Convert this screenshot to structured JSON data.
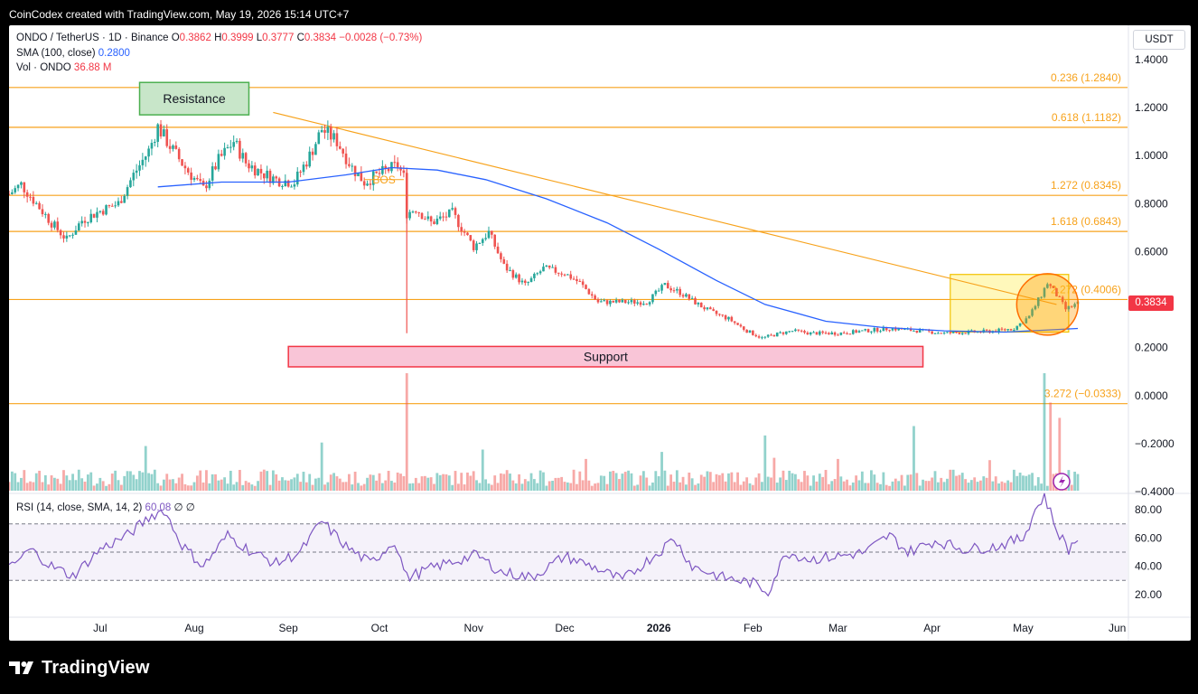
{
  "header": {
    "caption": "CoinCodex created with TradingView.com, May 19, 2026 15:14 UTC+7"
  },
  "legend": {
    "symbol": "ONDO / TetherUS · 1D · Binance",
    "o_label": "O",
    "o_value": "0.3862",
    "h_label": "H",
    "h_value": "0.3999",
    "l_label": "L",
    "l_value": "0.3777",
    "c_label": "C",
    "c_value": "0.3834",
    "change": "−0.0028 (−0.73%)",
    "sma_label": "SMA (100, close)",
    "sma_value": "0.2800",
    "vol_label": "Vol · ONDO",
    "vol_value": "36.88 M"
  },
  "rsi_legend": {
    "label": "RSI (14, close, SMA, 14, 2)",
    "value": "60.08",
    "extra": "∅ ∅"
  },
  "currency": "USDT",
  "last_price_tag": "0.3834",
  "footer": {
    "brand": "TradingView"
  },
  "colors": {
    "up": "#26a69a",
    "down": "#ef5350",
    "sma": "#2962ff",
    "fib": "#f7a21b",
    "rsi": "#7e57c2",
    "resistance_box": "#4caf50",
    "support_box": "#f23645",
    "highlight_box": "#ffeb3b"
  },
  "chart_data": {
    "type": "candlestick",
    "y_axis": {
      "min": -0.4,
      "max": 1.4,
      "ticks": [
        "1.4000",
        "1.2000",
        "1.0000",
        "0.8000",
        "0.6000",
        "0.4000",
        "0.2000",
        "0.0000",
        "−0.2000",
        "−0.4000"
      ]
    },
    "x_ticks": [
      {
        "label": "Jul",
        "date": "2025-07-01"
      },
      {
        "label": "Aug",
        "date": "2025-08-01"
      },
      {
        "label": "Sep",
        "date": "2025-09-01"
      },
      {
        "label": "Oct",
        "date": "2025-10-01"
      },
      {
        "label": "Nov",
        "date": "2025-11-01"
      },
      {
        "label": "Dec",
        "date": "2025-12-01"
      },
      {
        "label": "2026",
        "date": "2026-01-01"
      },
      {
        "label": "Feb",
        "date": "2026-02-01"
      },
      {
        "label": "Mar",
        "date": "2026-03-01"
      },
      {
        "label": "Apr",
        "date": "2026-04-01"
      },
      {
        "label": "May",
        "date": "2026-05-01"
      },
      {
        "label": "Jun",
        "date": "2026-06-01"
      }
    ],
    "x_range": [
      "2025-06-01",
      "2026-06-02"
    ],
    "price_anchors": [
      [
        "2025-06-01",
        0.84
      ],
      [
        "2025-06-05",
        0.88
      ],
      [
        "2025-06-10",
        0.8
      ],
      [
        "2025-06-15",
        0.72
      ],
      [
        "2025-06-20",
        0.65
      ],
      [
        "2025-06-25",
        0.73
      ],
      [
        "2025-07-01",
        0.77
      ],
      [
        "2025-07-07",
        0.8
      ],
      [
        "2025-07-12",
        0.92
      ],
      [
        "2025-07-17",
        1.02
      ],
      [
        "2025-07-20",
        1.12
      ],
      [
        "2025-07-24",
        1.04
      ],
      [
        "2025-07-29",
        0.95
      ],
      [
        "2025-08-04",
        0.86
      ],
      [
        "2025-08-09",
        0.98
      ],
      [
        "2025-08-14",
        1.06
      ],
      [
        "2025-08-18",
        0.97
      ],
      [
        "2025-08-23",
        0.93
      ],
      [
        "2025-08-28",
        0.9
      ],
      [
        "2025-09-03",
        0.89
      ],
      [
        "2025-09-08",
        1.0
      ],
      [
        "2025-09-12",
        1.11
      ],
      [
        "2025-09-17",
        1.06
      ],
      [
        "2025-09-22",
        0.95
      ],
      [
        "2025-09-26",
        0.89
      ],
      [
        "2025-10-02",
        0.93
      ],
      [
        "2025-10-07",
        0.96
      ],
      [
        "2025-10-09",
        0.91
      ],
      [
        "2025-10-10",
        0.76
      ],
      [
        "2025-10-13",
        0.78
      ],
      [
        "2025-10-18",
        0.72
      ],
      [
        "2025-10-25",
        0.76
      ],
      [
        "2025-11-01",
        0.62
      ],
      [
        "2025-11-06",
        0.68
      ],
      [
        "2025-11-11",
        0.54
      ],
      [
        "2025-11-18",
        0.46
      ],
      [
        "2025-11-24",
        0.53
      ],
      [
        "2025-12-01",
        0.51
      ],
      [
        "2025-12-06",
        0.47
      ],
      [
        "2025-12-12",
        0.39
      ],
      [
        "2025-12-20",
        0.39
      ],
      [
        "2025-12-28",
        0.39
      ],
      [
        "2026-01-03",
        0.46
      ],
      [
        "2026-01-08",
        0.43
      ],
      [
        "2026-01-14",
        0.38
      ],
      [
        "2026-01-18",
        0.35
      ],
      [
        "2026-01-24",
        0.32
      ],
      [
        "2026-01-30",
        0.27
      ],
      [
        "2026-02-04",
        0.24
      ],
      [
        "2026-02-10",
        0.26
      ],
      [
        "2026-02-14",
        0.27
      ],
      [
        "2026-02-20",
        0.26
      ],
      [
        "2026-03-01",
        0.26
      ],
      [
        "2026-03-10",
        0.27
      ],
      [
        "2026-03-18",
        0.28
      ],
      [
        "2026-03-28",
        0.27
      ],
      [
        "2026-04-05",
        0.26
      ],
      [
        "2026-04-15",
        0.265
      ],
      [
        "2026-04-22",
        0.27
      ],
      [
        "2026-04-28",
        0.28
      ],
      [
        "2026-05-03",
        0.33
      ],
      [
        "2026-05-07",
        0.42
      ],
      [
        "2026-05-09",
        0.47
      ],
      [
        "2026-05-12",
        0.42
      ],
      [
        "2026-05-15",
        0.36
      ],
      [
        "2026-05-19",
        0.3834
      ]
    ],
    "sma_100": [
      [
        "2025-07-20",
        0.87
      ],
      [
        "2025-08-10",
        0.89
      ],
      [
        "2025-09-01",
        0.89
      ],
      [
        "2025-09-20",
        0.92
      ],
      [
        "2025-10-05",
        0.95
      ],
      [
        "2025-10-20",
        0.94
      ],
      [
        "2025-11-05",
        0.9
      ],
      [
        "2025-11-25",
        0.82
      ],
      [
        "2025-12-15",
        0.72
      ],
      [
        "2026-01-01",
        0.61
      ],
      [
        "2026-01-20",
        0.48
      ],
      [
        "2026-02-05",
        0.38
      ],
      [
        "2026-02-25",
        0.31
      ],
      [
        "2026-03-15",
        0.285
      ],
      [
        "2026-04-05",
        0.27
      ],
      [
        "2026-04-25",
        0.265
      ],
      [
        "2026-05-19",
        0.28
      ]
    ],
    "fib_levels": [
      {
        "label": "0.236 (1.2840)",
        "value": 1.284
      },
      {
        "label": "0.618 (1.1182)",
        "value": 1.1182
      },
      {
        "label": "1.272 (0.8345)",
        "value": 0.8345
      },
      {
        "label": "1.618 (0.6843)",
        "value": 0.6843
      },
      {
        "label": "2.272 (0.4006)",
        "value": 0.4006
      },
      {
        "label": "3.272 (−0.0333)",
        "value": -0.0333
      }
    ],
    "trendline": [
      [
        "2025-08-27",
        1.18
      ],
      [
        "2026-05-12",
        0.38
      ]
    ],
    "annotations": {
      "resistance": {
        "text": "Resistance",
        "from": "2025-07-14",
        "to": "2025-08-19",
        "top": 1.305,
        "bottom": 1.17
      },
      "support": {
        "text": "Support",
        "from": "2025-09-01",
        "to": "2026-03-29",
        "top": 0.205,
        "bottom": 0.12
      },
      "highlight_box": {
        "from": "2026-04-07",
        "to": "2026-05-16",
        "top": 0.505,
        "bottom": 0.265
      },
      "circle": {
        "center": "2026-05-09",
        "value": 0.38,
        "radius_value": 0.11
      },
      "bos": {
        "text": "BOS",
        "from": "2025-09-26",
        "to": "2025-10-09",
        "value": 0.9
      }
    },
    "volume_spikes": [
      [
        "2025-10-10",
        1.0
      ],
      [
        "2026-05-08",
        1.0
      ],
      [
        "2026-03-26",
        0.55
      ],
      [
        "2026-05-10",
        0.75
      ],
      [
        "2026-05-13",
        0.62
      ],
      [
        "2026-02-05",
        0.47
      ],
      [
        "2025-09-12",
        0.41
      ],
      [
        "2025-07-16",
        0.38
      ],
      [
        "2025-11-04",
        0.35
      ],
      [
        "2026-01-02",
        0.33
      ],
      [
        "2025-12-08",
        0.27
      ],
      [
        "2026-03-01",
        0.27
      ],
      [
        "2026-04-20",
        0.26
      ],
      [
        "2026-02-08",
        0.28
      ]
    ],
    "rsi": {
      "ticks": [
        "80.00",
        "60.00",
        "40.00",
        "20.00"
      ],
      "levels": {
        "upper": 70,
        "middle": 50,
        "lower": 30
      },
      "anchors": [
        [
          "2025-06-01",
          38
        ],
        [
          "2025-06-08",
          52
        ],
        [
          "2025-06-15",
          40
        ],
        [
          "2025-06-22",
          33
        ],
        [
          "2025-07-01",
          52
        ],
        [
          "2025-07-10",
          62
        ],
        [
          "2025-07-18",
          76
        ],
        [
          "2025-07-22",
          80
        ],
        [
          "2025-07-28",
          55
        ],
        [
          "2025-08-04",
          40
        ],
        [
          "2025-08-12",
          62
        ],
        [
          "2025-08-20",
          50
        ],
        [
          "2025-08-28",
          42
        ],
        [
          "2025-09-05",
          50
        ],
        [
          "2025-09-12",
          72
        ],
        [
          "2025-09-20",
          54
        ],
        [
          "2025-09-28",
          42
        ],
        [
          "2025-10-06",
          58
        ],
        [
          "2025-10-10",
          32
        ],
        [
          "2025-10-20",
          40
        ],
        [
          "2025-11-02",
          48
        ],
        [
          "2025-11-10",
          36
        ],
        [
          "2025-11-20",
          32
        ],
        [
          "2025-12-01",
          47
        ],
        [
          "2025-12-10",
          40
        ],
        [
          "2025-12-20",
          30
        ],
        [
          "2026-01-02",
          52
        ],
        [
          "2026-01-06",
          60
        ],
        [
          "2026-01-12",
          40
        ],
        [
          "2026-01-22",
          32
        ],
        [
          "2026-02-01",
          28
        ],
        [
          "2026-02-06",
          22
        ],
        [
          "2026-02-12",
          50
        ],
        [
          "2026-02-20",
          45
        ],
        [
          "2026-03-01",
          47
        ],
        [
          "2026-03-10",
          50
        ],
        [
          "2026-03-18",
          62
        ],
        [
          "2026-03-24",
          50
        ],
        [
          "2026-04-02",
          58
        ],
        [
          "2026-04-12",
          52
        ],
        [
          "2026-04-22",
          54
        ],
        [
          "2026-05-01",
          60
        ],
        [
          "2026-05-05",
          80
        ],
        [
          "2026-05-08",
          90
        ],
        [
          "2026-05-12",
          66
        ],
        [
          "2026-05-16",
          52
        ],
        [
          "2026-05-19",
          60
        ]
      ]
    }
  }
}
